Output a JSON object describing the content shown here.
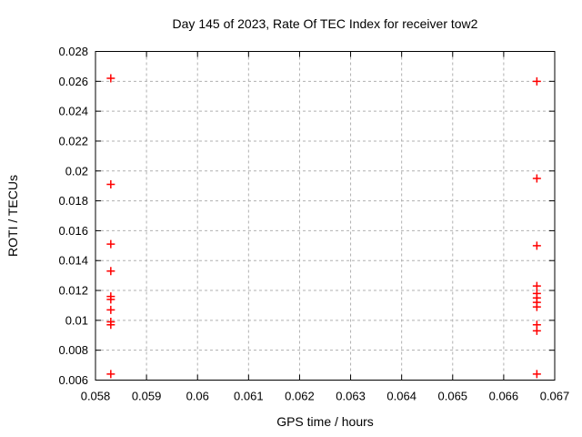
{
  "chart_data": {
    "type": "scatter",
    "title": "Day 145 of 2023, Rate Of TEC Index for receiver tow2",
    "xlabel": "GPS time / hours",
    "ylabel": "ROTI / TECUs",
    "xlim": [
      0.058,
      0.067
    ],
    "ylim": [
      0.006,
      0.028
    ],
    "xtick_values": [
      0.058,
      0.059,
      0.06,
      0.061,
      0.062,
      0.063,
      0.064,
      0.065,
      0.066,
      0.067
    ],
    "xtick_labels": [
      "0.058",
      "0.059",
      "0.06",
      "0.061",
      "0.062",
      "0.063",
      "0.064",
      "0.065",
      "0.066",
      "0.067"
    ],
    "ytick_values": [
      0.006,
      0.008,
      0.01,
      0.012,
      0.014,
      0.016,
      0.018,
      0.02,
      0.022,
      0.024,
      0.026,
      0.028
    ],
    "ytick_labels": [
      "0.006",
      "0.008",
      "0.01",
      "0.012",
      "0.014",
      "0.016",
      "0.018",
      "0.02",
      "0.022",
      "0.024",
      "0.026",
      "0.028"
    ],
    "grid": true,
    "legend_position": "none",
    "marker": {
      "shape": "plus",
      "color": "#ff0000",
      "size": 9
    },
    "colors": {
      "background": "#ffffff",
      "axis": "#000000",
      "grid": "#b0b0b0",
      "text": "#000000"
    },
    "series": [
      {
        "name": "ROTI",
        "points": [
          [
            0.0583,
            0.0262
          ],
          [
            0.0583,
            0.0191
          ],
          [
            0.0583,
            0.0151
          ],
          [
            0.0583,
            0.0133
          ],
          [
            0.0583,
            0.0116
          ],
          [
            0.0583,
            0.0114
          ],
          [
            0.0583,
            0.0107
          ],
          [
            0.0583,
            0.0099
          ],
          [
            0.0583,
            0.0097
          ],
          [
            0.0583,
            0.0064
          ],
          [
            0.06665,
            0.026
          ],
          [
            0.06665,
            0.0195
          ],
          [
            0.06665,
            0.015
          ],
          [
            0.06665,
            0.0123
          ],
          [
            0.06665,
            0.0118
          ],
          [
            0.06665,
            0.0115
          ],
          [
            0.06665,
            0.0112
          ],
          [
            0.06665,
            0.0109
          ],
          [
            0.06665,
            0.0097
          ],
          [
            0.06665,
            0.0093
          ],
          [
            0.06665,
            0.0064
          ]
        ]
      }
    ]
  }
}
